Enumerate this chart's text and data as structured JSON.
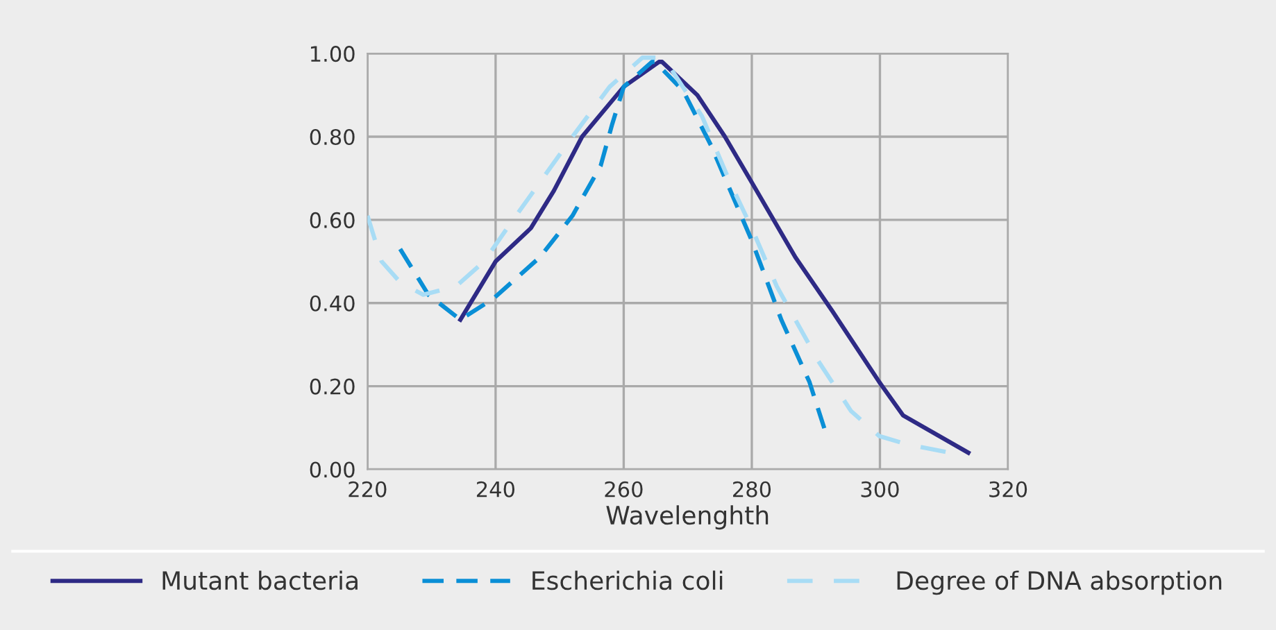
{
  "chart_data": {
    "type": "line",
    "xlabel": "Wavelenghth",
    "xlim": [
      220,
      320
    ],
    "xticks": [
      220,
      240,
      260,
      280,
      300,
      320
    ],
    "ylim": [
      0,
      1
    ],
    "yticks": [
      {
        "value": 0,
        "label": "0.00"
      },
      {
        "value": 0.2,
        "label": "0.20"
      },
      {
        "value": 0.4,
        "label": "0.40"
      },
      {
        "value": 0.6,
        "label": "0.60"
      },
      {
        "value": 0.8,
        "label": "0.80"
      },
      {
        "value": 1,
        "label": "1.00"
      }
    ],
    "grid": true,
    "legend": "bottom",
    "marker": "none",
    "series": [
      {
        "name": "Mutant bacteria",
        "color": "#2e2a85",
        "line_style": "solid",
        "x": [
          234.5,
          240,
          245.5,
          249.1,
          253.5,
          260,
          265.5,
          266,
          271.5,
          275.8,
          280,
          286.8,
          292.6,
          299.9,
          303.6,
          313.8
        ],
        "values": [
          0.36,
          0.5,
          0.58,
          0.67,
          0.8,
          0.92,
          0.98,
          0.98,
          0.9,
          0.8,
          0.69,
          0.51,
          0.38,
          0.21,
          0.13,
          0.04
        ]
      },
      {
        "name": "Escherichia coli",
        "color": "#0a8fd6",
        "line_style": "dashed",
        "x": [
          225.1,
          229.5,
          234.5,
          239.6,
          246.9,
          252,
          256.4,
          258.2,
          260,
          264.4,
          264.9,
          269.3,
          273.6,
          280,
          284.6,
          289,
          291.5
        ],
        "values": [
          0.53,
          0.42,
          0.36,
          0.41,
          0.51,
          0.61,
          0.73,
          0.83,
          0.92,
          0.98,
          0.98,
          0.91,
          0.78,
          0.55,
          0.36,
          0.21,
          0.09
        ]
      },
      {
        "name": "Degree of DNA absorption",
        "color": "#a8dcf5",
        "line_style": "dashed",
        "x": [
          220,
          222.2,
          225.1,
          228.7,
          233.8,
          238.2,
          241.8,
          246.9,
          252,
          257.8,
          262.9,
          265,
          267.1,
          272.2,
          276.6,
          280,
          283.9,
          290.4,
          295.5,
          299.9,
          304.3,
          310.9
        ],
        "values": [
          0.61,
          0.5,
          0.45,
          0.42,
          0.44,
          0.5,
          0.58,
          0.69,
          0.8,
          0.92,
          0.99,
          0.99,
          0.97,
          0.85,
          0.69,
          0.58,
          0.44,
          0.26,
          0.14,
          0.08,
          0.06,
          0.04
        ]
      }
    ]
  }
}
